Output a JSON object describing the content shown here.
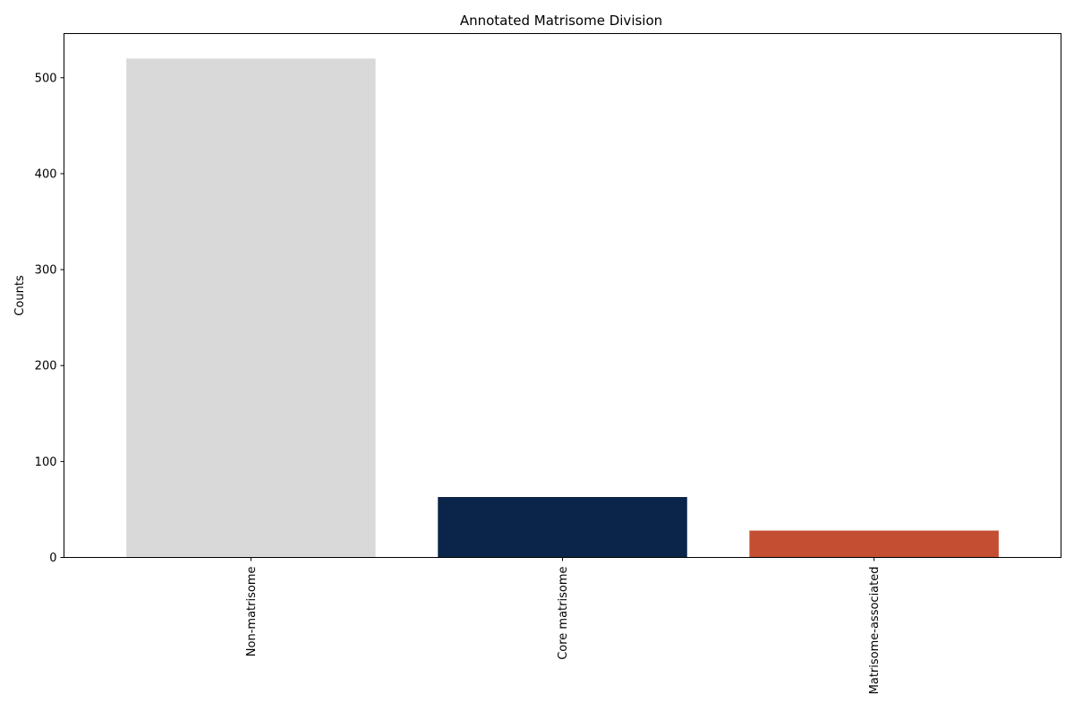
{
  "chart_data": {
    "type": "bar",
    "title": "Annotated Matrisome Division",
    "xlabel": "",
    "ylabel": "Counts",
    "categories": [
      "Non-matrisome",
      "Core matrisome",
      "Matrisome-associated"
    ],
    "values": [
      520,
      63,
      28
    ],
    "colors": [
      "#d9d9d9",
      "#0b254a",
      "#c44e32"
    ],
    "ylim": [
      0,
      546
    ],
    "yticks": [
      0,
      100,
      200,
      300,
      400,
      500
    ],
    "grid": false,
    "legend": "none"
  }
}
